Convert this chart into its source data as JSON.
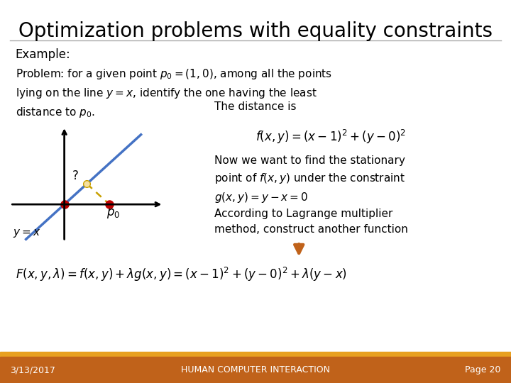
{
  "title": "Optimization problems with equality constraints",
  "title_fontsize": 20,
  "title_font": "DejaVu Sans",
  "bg_color": "#ffffff",
  "footer_bg": "#c0621a",
  "footer_stripe": "#e8a020",
  "footer_left": "3/13/2017",
  "footer_center": "HUMAN COMPUTER INTERACTION",
  "footer_right": "Page 20",
  "footer_fontsize": 9,
  "footer_color": "#ffffff",
  "text_color": "#000000",
  "line_color": "#4472c4",
  "dashed_color": "#c8a000",
  "point_color_red": "#c00000",
  "axis_color": "#000000",
  "arrow_color": "#c0621a",
  "underline_color": "#aaaaaa"
}
